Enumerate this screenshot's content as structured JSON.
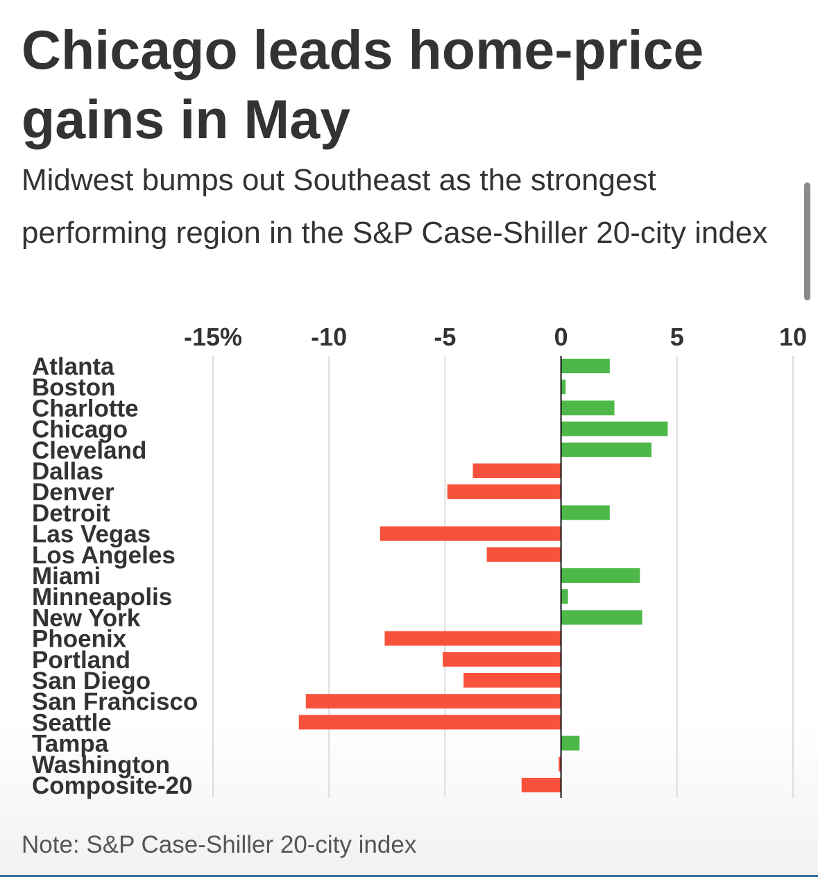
{
  "header": {
    "title": "Chicago leads home-price gains in May",
    "subtitle": "Midwest bumps out Southeast as the strongest performing region in the S&P Case-Shiller 20-city index"
  },
  "note": "Note: S&P Case-Shiller 20-city index",
  "colors": {
    "positive": "#4db848",
    "negative": "#f9523c",
    "grid": "#dddddd",
    "zero_line": "#111111",
    "text": "#333333",
    "scrollbar": "#8a8a8a",
    "bottom_rule": "#2f6f9f"
  },
  "chart_data": {
    "type": "bar",
    "orientation": "horizontal",
    "title": "Chicago leads home-price gains in May",
    "subtitle": "Midwest bumps out Southeast as the strongest performing region in the S&P Case-Shiller 20-city index",
    "xlabel": "",
    "ylabel": "",
    "unit": "%",
    "xlim": [
      -15,
      10
    ],
    "ticks": [
      -15,
      -10,
      -5,
      0,
      5,
      10
    ],
    "tick_labels": [
      "-15%",
      "-10",
      "-5",
      "0",
      "5",
      "10"
    ],
    "grid": true,
    "categories": [
      "Atlanta",
      "Boston",
      "Charlotte",
      "Chicago",
      "Cleveland",
      "Dallas",
      "Denver",
      "Detroit",
      "Las Vegas",
      "Los Angeles",
      "Miami",
      "Minneapolis",
      "New York",
      "Phoenix",
      "Portland",
      "San Diego",
      "San Francisco",
      "Seattle",
      "Tampa",
      "Washington",
      "Composite-20"
    ],
    "values": [
      2.1,
      0.2,
      2.3,
      4.6,
      3.9,
      -3.8,
      -4.9,
      2.1,
      -7.8,
      -3.2,
      3.4,
      0.3,
      3.5,
      -7.6,
      -5.1,
      -4.2,
      -11.0,
      -11.3,
      0.8,
      -0.1,
      -1.7
    ]
  }
}
